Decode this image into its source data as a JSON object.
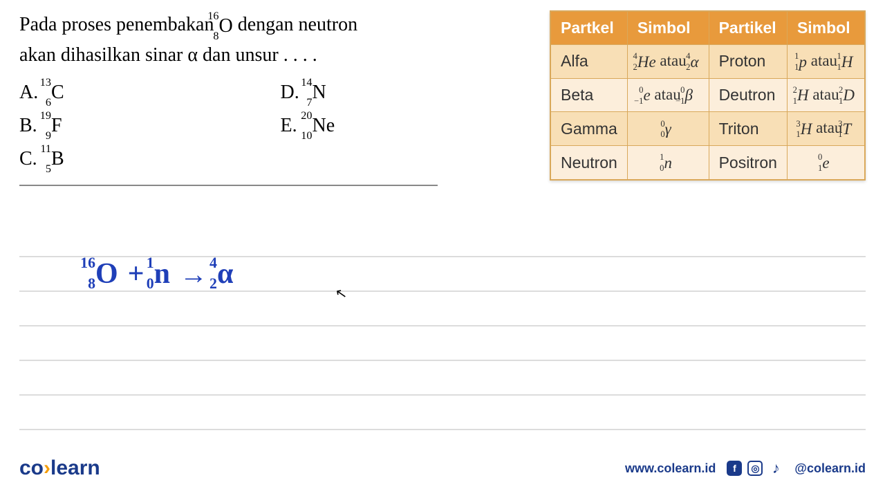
{
  "question": {
    "line1_before": "Pada proses penembakan ",
    "nucl_q": {
      "mass": "16",
      "z": "8",
      "el": "O"
    },
    "line1_after": " dengan neutron",
    "line2": "akan dihasilkan sinar α dan unsur . . . .",
    "answers": [
      {
        "letter": "A.",
        "mass": "13",
        "z": "6",
        "el": "C"
      },
      {
        "letter": "D.",
        "mass": "14",
        "z": "7",
        "el": "N"
      },
      {
        "letter": "B.",
        "mass": "19",
        "z": "9",
        "el": "F"
      },
      {
        "letter": "E.",
        "mass": "20",
        "z": "10",
        "el": "Ne"
      },
      {
        "letter": "C.",
        "mass": "11",
        "z": "5",
        "el": "B"
      }
    ]
  },
  "table": {
    "headers": [
      "Partkel",
      "Simbol",
      "Partikel",
      "Simbol"
    ],
    "rows": [
      {
        "p1": "Alfa",
        "s1": {
          "a": "4",
          "z": "2",
          "el": "He",
          "sep": " atau ",
          "a2": "4",
          "z2": "2",
          "el2": "α"
        },
        "p2": "Proton",
        "s2": {
          "a": "1",
          "z": "1",
          "el": "p",
          "sep": " atau ",
          "a2": "1",
          "z2": "1",
          "el2": "H"
        }
      },
      {
        "p1": "Beta",
        "s1": {
          "a": "0",
          "z": "−1",
          "el": "e",
          "sep": " atau ",
          "a2": "0",
          "z2": "−1",
          "el2": "β"
        },
        "p2": "Deutron",
        "s2": {
          "a": "2",
          "z": "1",
          "el": "H",
          "sep": " atau ",
          "a2": "2",
          "z2": "1",
          "el2": "D"
        }
      },
      {
        "p1": "Gamma",
        "s1": {
          "a": "0",
          "z": "0",
          "el": "γ"
        },
        "p2": "Triton",
        "s2": {
          "a": "3",
          "z": "1",
          "el": "H",
          "sep": " atau",
          "a2": "3",
          "z2": "1",
          "el2": "T"
        }
      },
      {
        "p1": "Neutron",
        "s1": {
          "a": "1",
          "z": "0",
          "el": "n"
        },
        "p2": "Positron",
        "s2": {
          "a": "0",
          "z": "1",
          "el": "e"
        }
      }
    ]
  },
  "handwriting": {
    "n1": {
      "a": "16",
      "z": "8",
      "el": "O"
    },
    "plus": "+",
    "n2": {
      "a": "1",
      "z": "0",
      "el": "n"
    },
    "arrow": "→",
    "n3": {
      "a": "4",
      "z": "2",
      "el": "α"
    }
  },
  "footer": {
    "logo_co": "co",
    "logo_sep": "›",
    "logo_learn": "learn",
    "url": "www.colearn.id",
    "handle": "@colearn.id"
  },
  "colors": {
    "table_header_bg": "#e89a3c",
    "table_row_light": "#fceedb",
    "table_row_dark": "#f8dfb6",
    "table_border": "#d9a85a",
    "handwriting": "#1f3fb8",
    "brand": "#1a3a8a",
    "accent": "#f59e0b",
    "line": "#dcdcdc"
  }
}
